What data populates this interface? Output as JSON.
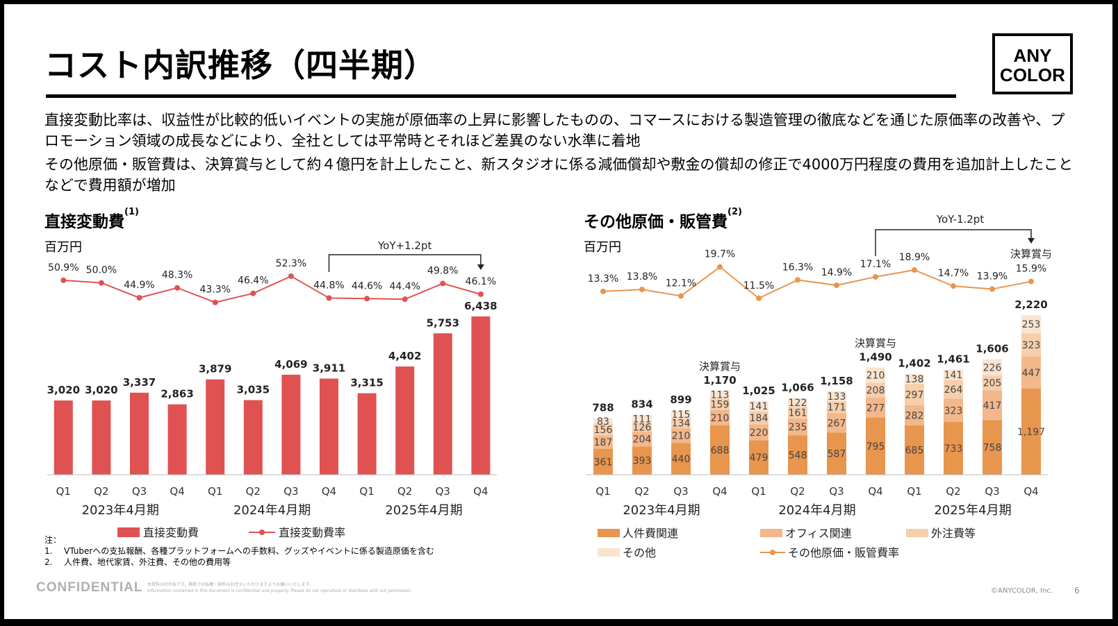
{
  "title": "コスト内訳推移（四半期）",
  "logo": {
    "line1": "ANY",
    "line2": "COLOR"
  },
  "paragraphs": [
    "直接変動比率は、収益性が比較的低いイベントの実施が原価率の上昇に影響したものの、コマースにおける製造管理の徹底などを通じた原価率の改善や、プロモーション領域の成長などにより、全社としては平常時とそれほど差異のない水準に着地",
    "その他原価・販管費は、決算賞与として約４億円を計上したこと、新スタジオに係る減価償却や敷金の償却の修正で4000万円程度の費用を追加計上したことなどで費用額が増加"
  ],
  "chart_data": [
    {
      "type": "bar",
      "title": "直接変動費",
      "title_note": "(1)",
      "unit": "百万円",
      "categories": [
        "Q1",
        "Q2",
        "Q3",
        "Q4",
        "Q1",
        "Q2",
        "Q3",
        "Q4",
        "Q1",
        "Q2",
        "Q3",
        "Q4"
      ],
      "groups": [
        "2023年4月期",
        "2024年4月期",
        "2025年4月期"
      ],
      "series": [
        {
          "name": "直接変動費",
          "kind": "bar",
          "color": "#e05252",
          "values": [
            3020,
            3020,
            3337,
            2863,
            3879,
            3035,
            4069,
            3911,
            3315,
            4402,
            5753,
            6438
          ]
        },
        {
          "name": "直接変動費率",
          "kind": "line",
          "color": "#e05252",
          "values": [
            50.9,
            50.0,
            44.9,
            48.3,
            43.3,
            46.4,
            52.3,
            44.8,
            44.6,
            44.4,
            49.8,
            46.1
          ]
        }
      ],
      "value_labels": [
        "3,020",
        "3,020",
        "3,337",
        "2,863",
        "3,879",
        "3,035",
        "4,069",
        "3,911",
        "3,315",
        "4,402",
        "5,753",
        "6,438"
      ],
      "rate_labels": [
        "50.9%",
        "50.0%",
        "44.9%",
        "48.3%",
        "43.3%",
        "46.4%",
        "52.3%",
        "44.8%",
        "44.6%",
        "44.4%",
        "49.8%",
        "46.1%"
      ],
      "annotation": {
        "text": "YoY+1.2pt",
        "from_index": 7,
        "to_index": 11
      }
    },
    {
      "type": "bar",
      "stacked": true,
      "title": "その他原価・販管費",
      "title_note": "(2)",
      "unit": "百万円",
      "categories": [
        "Q1",
        "Q2",
        "Q3",
        "Q4",
        "Q1",
        "Q2",
        "Q3",
        "Q4",
        "Q1",
        "Q2",
        "Q3",
        "Q4"
      ],
      "groups": [
        "2023年4月期",
        "2024年4月期",
        "2025年4月期"
      ],
      "series": [
        {
          "name": "人件費関連",
          "kind": "bar",
          "color": "#e8954e",
          "values": [
            361,
            393,
            440,
            688,
            479,
            548,
            587,
            795,
            685,
            733,
            758,
            1197
          ]
        },
        {
          "name": "オフィス関連",
          "kind": "bar",
          "color": "#f2b78a",
          "values": [
            187,
            204,
            210,
            210,
            220,
            235,
            267,
            277,
            282,
            323,
            417,
            447
          ]
        },
        {
          "name": "外注費等",
          "kind": "bar",
          "color": "#f6ceac",
          "values": [
            156,
            126,
            134,
            159,
            184,
            161,
            171,
            208,
            297,
            264,
            205,
            323
          ]
        },
        {
          "name": "その他",
          "kind": "bar",
          "color": "#fae4d0",
          "values": [
            83,
            111,
            115,
            113,
            141,
            122,
            133,
            210,
            138,
            141,
            226,
            253
          ]
        },
        {
          "name": "その他原価・販管費率",
          "kind": "line",
          "color": "#e8954e",
          "values": [
            13.3,
            13.8,
            12.1,
            19.7,
            11.5,
            16.3,
            14.9,
            17.1,
            18.9,
            14.7,
            13.9,
            15.9
          ]
        }
      ],
      "totals": [
        788,
        834,
        899,
        1170,
        1025,
        1066,
        1158,
        1490,
        1402,
        1461,
        1606,
        2220
      ],
      "total_labels": [
        "788",
        "834",
        "899",
        "1,170",
        "1,025",
        "1,066",
        "1,158",
        "1,490",
        "1,402",
        "1,461",
        "1,606",
        "2,220"
      ],
      "segment_labels": [
        [
          "361",
          "187",
          "156",
          "83"
        ],
        [
          "393",
          "204",
          "126",
          "111"
        ],
        [
          "440",
          "210",
          "134",
          "115"
        ],
        [
          "688",
          "210",
          "159",
          "113"
        ],
        [
          "479",
          "220",
          "184",
          "141"
        ],
        [
          "548",
          "235",
          "161",
          "122"
        ],
        [
          "587",
          "267",
          "171",
          "133"
        ],
        [
          "795",
          "277",
          "208",
          "210"
        ],
        [
          "685",
          "282",
          "297",
          "138"
        ],
        [
          "733",
          "323",
          "264",
          "141"
        ],
        [
          "758",
          "417",
          "205",
          "226"
        ],
        [
          "1,197",
          "447",
          "323",
          "253"
        ]
      ],
      "rate_labels": [
        "13.3%",
        "13.8%",
        "12.1%",
        "19.7%",
        "11.5%",
        "16.3%",
        "14.9%",
        "17.1%",
        "18.9%",
        "14.7%",
        "13.9%",
        "15.9%"
      ],
      "bonus_label": "決算賞与",
      "bonus_indices": [
        3,
        7,
        11
      ],
      "annotation": {
        "text": "YoY-1.2pt",
        "from_index": 7,
        "to_index": 11
      }
    }
  ],
  "notes": {
    "heading": "注：",
    "items": [
      {
        "num": "1.",
        "text": "VTuberへの支払報酬、各種プラットフォームへの手数料、グッズやイベントに係る製造原価を含む"
      },
      {
        "num": "2.",
        "text": "人件費、地代家賃、外注費、その他の費用等"
      }
    ]
  },
  "footer": {
    "confidential": "CONFIDENTIAL",
    "small1": "本資料は社外秘です。無断での転載・配布はお控えいただけますようお願いいたします。",
    "small2": "Information contained in this document is confidential and property. Please do not reproduce or distribute with out permission.",
    "copyright": "©ANYCOLOR, Inc.",
    "page": "6"
  }
}
